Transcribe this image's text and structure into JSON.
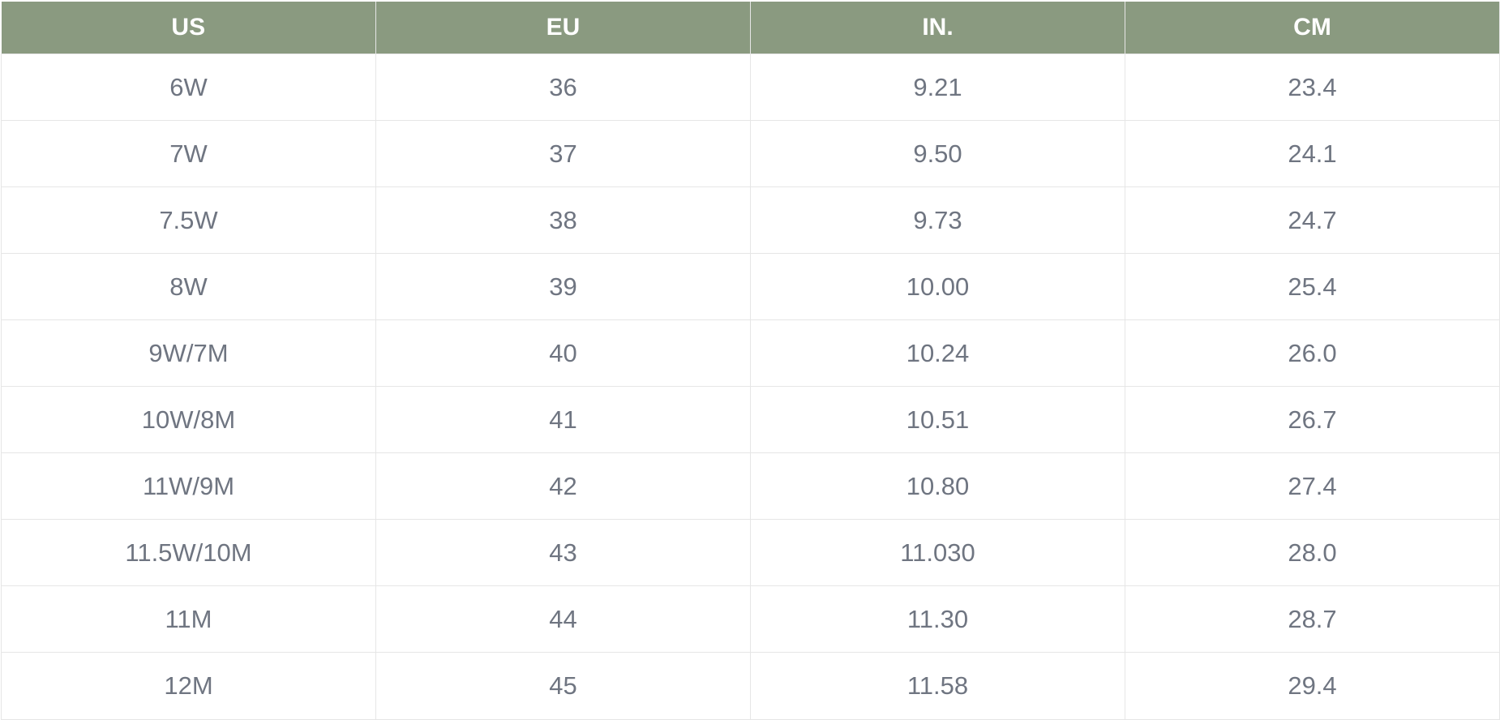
{
  "table": {
    "headers": [
      "US",
      "EU",
      "IN.",
      "CM"
    ],
    "rows": [
      [
        "6W",
        "36",
        "9.21",
        "23.4"
      ],
      [
        "7W",
        "37",
        "9.50",
        "24.1"
      ],
      [
        "7.5W",
        "38",
        "9.73",
        "24.7"
      ],
      [
        "8W",
        "39",
        "10.00",
        "25.4"
      ],
      [
        "9W/7M",
        "40",
        "10.24",
        "26.0"
      ],
      [
        "10W/8M",
        "41",
        "10.51",
        "26.7"
      ],
      [
        "11W/9M",
        "42",
        "10.80",
        "27.4"
      ],
      [
        "11.5W/10M",
        "43",
        "11.030",
        "28.0"
      ],
      [
        "11M",
        "44",
        "11.30",
        "28.7"
      ],
      [
        "12M",
        "45",
        "11.58",
        "29.4"
      ]
    ]
  },
  "colors": {
    "header_background": "#8a9a80",
    "header_text": "#ffffff",
    "cell_text": "#6f7581",
    "grid_line": "#e6e6e6"
  }
}
